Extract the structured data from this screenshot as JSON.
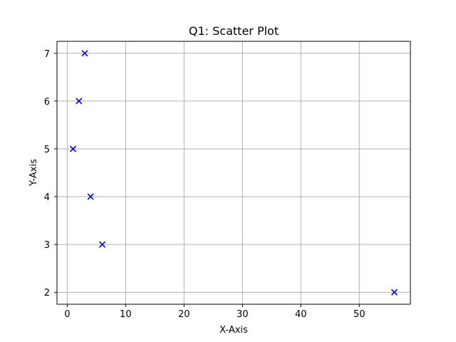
{
  "chart_data": {
    "type": "scatter",
    "title": "Q1: Scatter Plot",
    "xlabel": "X-Axis",
    "ylabel": "Y-Axis",
    "xlim": [
      -1.75,
      58.75
    ],
    "ylim": [
      1.75,
      7.25
    ],
    "xticks": [
      0,
      10,
      20,
      30,
      40,
      50
    ],
    "yticks": [
      2,
      3,
      4,
      5,
      6,
      7
    ],
    "grid": true,
    "marker": "x",
    "color": "#0000ff",
    "points": [
      {
        "x": 1,
        "y": 5
      },
      {
        "x": 2,
        "y": 6
      },
      {
        "x": 3,
        "y": 7
      },
      {
        "x": 4,
        "y": 4
      },
      {
        "x": 6,
        "y": 3
      },
      {
        "x": 56,
        "y": 2
      }
    ]
  }
}
